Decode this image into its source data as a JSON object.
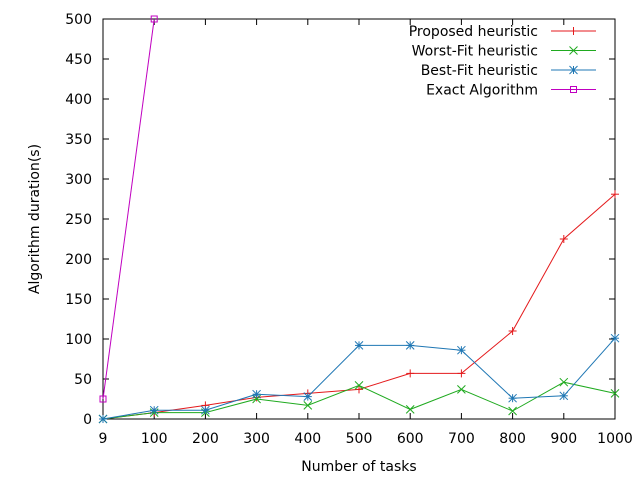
{
  "chart_data": {
    "type": "line",
    "title": "",
    "xlabel": "Number of tasks",
    "ylabel": "Algorithm duration(s)",
    "categories": [
      "9",
      "100",
      "200",
      "300",
      "400",
      "500",
      "600",
      "700",
      "800",
      "900",
      "1000"
    ],
    "yticks": [
      0,
      50,
      100,
      150,
      200,
      250,
      300,
      350,
      400,
      450,
      500
    ],
    "ylim": [
      0,
      500
    ],
    "grid": false,
    "legend_position": "top-right",
    "series": [
      {
        "name": "Proposed heuristic",
        "color": "#e41a1c",
        "marker": "plus",
        "values": [
          0,
          8,
          17,
          27,
          32,
          37,
          57,
          57,
          110,
          225,
          281
        ]
      },
      {
        "name": "Worst-Fit heuristic",
        "color": "#1faa1f",
        "marker": "cross",
        "values": [
          0,
          8,
          8,
          25,
          17,
          42,
          12,
          37,
          10,
          46,
          32
        ]
      },
      {
        "name": "Best-Fit heuristic",
        "color": "#1f77b4",
        "marker": "star",
        "values": [
          0,
          11,
          11,
          31,
          28,
          92,
          92,
          86,
          26,
          29,
          101
        ]
      },
      {
        "name": "Exact Algorithm",
        "color": "#c000c0",
        "marker": "square",
        "values": [
          25,
          500,
          null,
          null,
          null,
          null,
          null,
          null,
          null,
          null,
          null
        ]
      }
    ]
  }
}
